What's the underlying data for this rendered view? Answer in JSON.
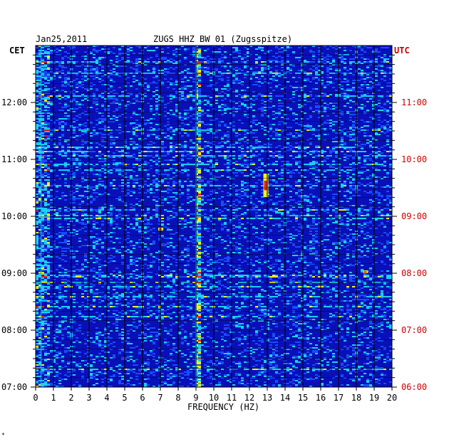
{
  "header": {
    "date": "Jan25,2011",
    "station": "ZUGS HHZ BW 01 (Zugsspitze)"
  },
  "left_timezone": "CET",
  "right_timezone": "UTC",
  "footer_mark": "*",
  "colors": {
    "plot_background": "#0a10b8",
    "left_axis_text": "#000000",
    "right_axis_text": "#cc0000"
  },
  "chart_data": {
    "type": "heatmap",
    "title": "ZUGS HHZ BW 01 (Zugsspitze)",
    "xlabel": "FREQUENCY (HZ)",
    "xlim": [
      0,
      20
    ],
    "x_ticks": [
      "0",
      "1",
      "2",
      "3",
      "4",
      "5",
      "6",
      "7",
      "8",
      "9",
      "10",
      "11",
      "12",
      "13",
      "14",
      "15",
      "16",
      "17",
      "18",
      "19",
      "20"
    ],
    "left_ylabel": "CET",
    "right_ylabel": "UTC",
    "y_ticks_left": [
      "12:00",
      "11:00",
      "10:00",
      "09:00",
      "08:00",
      "07:00"
    ],
    "y_ticks_right": [
      "11:00",
      "10:00",
      "09:00",
      "08:00",
      "07:00",
      "06:00"
    ],
    "y_range_cet": [
      "07:00",
      "12:50"
    ],
    "colormap": [
      "#0a10b8",
      "#1a4bff",
      "#19d0f5",
      "#f5f01a",
      "#f02010"
    ],
    "grid": true,
    "notable_features": [
      {
        "freq_hz": 9.0,
        "description": "persistent narrow line"
      },
      {
        "freq_hz": 12.9,
        "time_cet": "10:20-10:45",
        "description": "strong red band"
      },
      {
        "freq_hz": 7.0,
        "time_cet": "09:45",
        "description": "yellow burst"
      },
      {
        "freq_hz": 18.5,
        "time_cet": "09:00",
        "description": "red streak"
      },
      {
        "freq_hz": 0.3,
        "description": "low-frequency energy throughout"
      }
    ]
  }
}
